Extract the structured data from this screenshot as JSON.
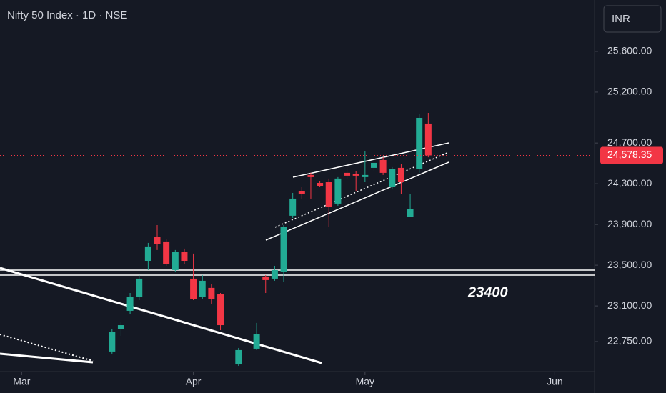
{
  "chart_data": {
    "type": "candlestick",
    "title": "Nifty 50 Index · 1D · NSE",
    "currency": "INR",
    "annotation": "23400",
    "up_color": "#22ab94",
    "down_color": "#f23645",
    "x": [
      12,
      13,
      14,
      15,
      16,
      17,
      18,
      19,
      20,
      21,
      22,
      23,
      24,
      26,
      28,
      29,
      30,
      31,
      32,
      33,
      34,
      35,
      36,
      37,
      38,
      39,
      40,
      41,
      42,
      43,
      44,
      45,
      46,
      47
    ],
    "open": [
      22652,
      22876,
      23052,
      23192,
      23543,
      23775,
      23733,
      23452,
      23628,
      23368,
      23192,
      23277,
      23213,
      22525,
      22680,
      23389,
      23368,
      23438,
      23986,
      24224,
      24386,
      24308,
      24315,
      24105,
      24407,
      24393,
      24365,
      24456,
      24533,
      24266,
      24456,
      23978,
      24442,
      24891
    ],
    "high": [
      22876,
      22947,
      23227,
      23403,
      23719,
      23894,
      23754,
      23649,
      23663,
      23614,
      23403,
      23312,
      23227,
      22687,
      22933,
      23403,
      23494,
      23894,
      24210,
      24266,
      24407,
      24322,
      24351,
      24365,
      24456,
      24421,
      24617,
      24547,
      24561,
      24463,
      24491,
      24196,
      24982,
      24996
    ],
    "low": [
      22631,
      22806,
      23017,
      23157,
      23452,
      23649,
      23494,
      23438,
      23508,
      23157,
      23171,
      23122,
      22862,
      22511,
      22666,
      23227,
      23347,
      23333,
      23964,
      24154,
      24154,
      24266,
      23873,
      24084,
      24351,
      24224,
      24315,
      24421,
      24386,
      24245,
      24196,
      23978,
      24407,
      24560
    ],
    "close": [
      22841,
      22911,
      23192,
      23368,
      23684,
      23705,
      23508,
      23628,
      23543,
      23171,
      23347,
      23171,
      22911,
      22666,
      22820,
      23354,
      23452,
      23873,
      24154,
      24196,
      24365,
      24280,
      24070,
      24351,
      24379,
      24379,
      24386,
      24505,
      24407,
      24442,
      24315,
      24049,
      24947,
      24578.35
    ],
    "xlim": [
      -0.4,
      65.4
    ],
    "xticks": [
      {
        "value": 2,
        "label": "Mar"
      },
      {
        "value": 21,
        "label": "Apr"
      },
      {
        "value": 40,
        "label": "May"
      },
      {
        "value": 61,
        "label": "Jun"
      }
    ],
    "ylim": [
      22455,
      26105
    ],
    "yticks": [
      {
        "value": 25600,
        "label": "25,600.00"
      },
      {
        "value": 25200,
        "label": "25,200.00"
      },
      {
        "value": 24700,
        "label": "24,700.00"
      },
      {
        "value": 24300,
        "label": "24,300.00"
      },
      {
        "value": 23900,
        "label": "23,900.00"
      },
      {
        "value": 23500,
        "label": "23,500.00"
      },
      {
        "value": 23100,
        "label": "23,100.00"
      },
      {
        "value": 22750,
        "label": "22,750.00"
      }
    ],
    "last_price": {
      "value": 24578.35,
      "label": "24,578.35"
    }
  }
}
